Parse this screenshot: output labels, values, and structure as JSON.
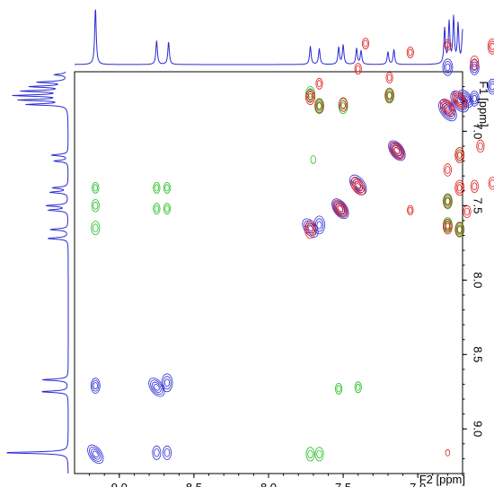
{
  "chart_data": {
    "type": "heatmap",
    "subtype": "2D NMR contour overlay",
    "title": "",
    "xlabel": "F2 [ppm]",
    "ylabel": "F1 [ppm]",
    "xlim": [
      9.3,
      6.7
    ],
    "ylim": [
      6.6,
      9.3
    ],
    "x_reversed": true,
    "y_direction": "increasing-downward",
    "axis_side": "right-bottom",
    "x_ticks": [
      "9.0",
      "8.5",
      "8.0",
      "7.5",
      "7.0"
    ],
    "y_ticks": [
      "7.0",
      "7.5",
      "8.0",
      "8.5",
      "9.0"
    ],
    "grid": false,
    "legend": "none",
    "colors": {
      "blue": "#2b2bd4",
      "green": "#1fbf1f",
      "red": "#e01c1c"
    },
    "proj_peaks": [
      {
        "ppm": 9.16,
        "h": 1.0
      },
      {
        "ppm": 8.75,
        "h": 0.42
      },
      {
        "ppm": 8.67,
        "h": 0.4
      },
      {
        "ppm": 7.72,
        "h": 0.32
      },
      {
        "ppm": 7.66,
        "h": 0.28
      },
      {
        "ppm": 7.53,
        "h": 0.3
      },
      {
        "ppm": 7.5,
        "h": 0.34
      },
      {
        "ppm": 7.41,
        "h": 0.28
      },
      {
        "ppm": 7.38,
        "h": 0.24
      },
      {
        "ppm": 7.2,
        "h": 0.22
      },
      {
        "ppm": 7.16,
        "h": 0.26
      },
      {
        "ppm": 6.82,
        "h": 0.62
      },
      {
        "ppm": 6.79,
        "h": 0.72
      },
      {
        "ppm": 6.76,
        "h": 0.8
      },
      {
        "ppm": 6.73,
        "h": 0.68
      },
      {
        "ppm": 6.7,
        "h": 0.56
      },
      {
        "ppm": 6.67,
        "h": 0.46
      },
      {
        "ppm": 6.62,
        "h": 0.2
      },
      {
        "ppm": 6.58,
        "h": 0.22
      },
      {
        "ppm": 6.5,
        "h": 0.18
      },
      {
        "ppm": 6.47,
        "h": 0.2
      }
    ],
    "series": [
      {
        "color": "blue",
        "points": [
          {
            "x": 9.16,
            "y": 9.17,
            "s": 1.3
          },
          {
            "x": 9.16,
            "y": 8.71,
            "s": 0.9
          },
          {
            "x": 8.75,
            "y": 8.72,
            "s": 1.3
          },
          {
            "x": 8.68,
            "y": 8.69,
            "s": 1.1
          },
          {
            "x": 8.75,
            "y": 9.16,
            "s": 0.8
          },
          {
            "x": 8.68,
            "y": 9.16,
            "s": 0.8
          },
          {
            "x": 7.72,
            "y": 7.65,
            "s": 1.3
          },
          {
            "x": 7.66,
            "y": 7.63,
            "s": 1.1
          },
          {
            "x": 7.52,
            "y": 7.52,
            "s": 1.4
          },
          {
            "x": 7.4,
            "y": 7.36,
            "s": 1.4
          },
          {
            "x": 7.14,
            "y": 7.13,
            "s": 1.4
          },
          {
            "x": 6.8,
            "y": 6.86,
            "s": 1.5
          },
          {
            "x": 6.72,
            "y": 6.8,
            "s": 1.5
          },
          {
            "x": 6.68,
            "y": 6.78,
            "s": 1.2
          },
          {
            "x": 6.8,
            "y": 6.57,
            "s": 1.0
          },
          {
            "x": 6.62,
            "y": 6.57,
            "s": 0.9
          },
          {
            "x": 6.5,
            "y": 6.7,
            "s": 0.9
          },
          {
            "x": 6.62,
            "y": 6.78,
            "s": 0.9
          }
        ]
      },
      {
        "color": "green",
        "points": [
          {
            "x": 9.16,
            "y": 7.38,
            "s": 0.6
          },
          {
            "x": 9.16,
            "y": 7.5,
            "s": 0.7
          },
          {
            "x": 9.16,
            "y": 7.65,
            "s": 0.8
          },
          {
            "x": 8.75,
            "y": 7.38,
            "s": 0.6
          },
          {
            "x": 8.68,
            "y": 7.38,
            "s": 0.6
          },
          {
            "x": 8.75,
            "y": 7.52,
            "s": 0.6
          },
          {
            "x": 8.68,
            "y": 7.52,
            "s": 0.6
          },
          {
            "x": 7.72,
            "y": 9.17,
            "s": 0.8
          },
          {
            "x": 7.66,
            "y": 9.17,
            "s": 0.8
          },
          {
            "x": 7.53,
            "y": 8.73,
            "s": 0.6
          },
          {
            "x": 7.4,
            "y": 8.72,
            "s": 0.6
          },
          {
            "x": 7.72,
            "y": 6.75,
            "s": 0.9
          },
          {
            "x": 7.66,
            "y": 6.83,
            "s": 0.9
          },
          {
            "x": 7.5,
            "y": 6.83,
            "s": 0.9
          },
          {
            "x": 7.19,
            "y": 6.76,
            "s": 0.9
          },
          {
            "x": 6.8,
            "y": 7.47,
            "s": 0.9
          },
          {
            "x": 6.8,
            "y": 7.63,
            "s": 0.9
          },
          {
            "x": 6.72,
            "y": 7.66,
            "s": 0.9
          },
          {
            "x": 6.72,
            "y": 7.16,
            "s": 0.9
          },
          {
            "x": 7.7,
            "y": 7.19,
            "s": 0.4
          }
        ]
      },
      {
        "color": "red",
        "points": [
          {
            "x": 7.72,
            "y": 7.66,
            "s": 1.1
          },
          {
            "x": 7.52,
            "y": 7.52,
            "s": 1.2
          },
          {
            "x": 7.4,
            "y": 7.37,
            "s": 1.2
          },
          {
            "x": 7.14,
            "y": 7.13,
            "s": 1.2
          },
          {
            "x": 6.8,
            "y": 6.84,
            "s": 1.2
          },
          {
            "x": 6.72,
            "y": 6.79,
            "s": 1.2
          },
          {
            "x": 7.35,
            "y": 6.41,
            "s": 0.6
          },
          {
            "x": 7.05,
            "y": 6.47,
            "s": 0.6
          },
          {
            "x": 7.4,
            "y": 6.58,
            "s": 0.6
          },
          {
            "x": 7.19,
            "y": 6.64,
            "s": 0.6
          },
          {
            "x": 7.66,
            "y": 6.68,
            "s": 0.6
          },
          {
            "x": 7.72,
            "y": 6.77,
            "s": 0.9
          },
          {
            "x": 7.66,
            "y": 6.83,
            "s": 0.8
          },
          {
            "x": 7.5,
            "y": 6.82,
            "s": 0.8
          },
          {
            "x": 7.19,
            "y": 6.76,
            "s": 0.8
          },
          {
            "x": 6.8,
            "y": 6.42,
            "s": 0.6
          },
          {
            "x": 6.62,
            "y": 6.54,
            "s": 0.8
          },
          {
            "x": 6.5,
            "y": 6.43,
            "s": 0.9
          },
          {
            "x": 6.72,
            "y": 7.16,
            "s": 0.9
          },
          {
            "x": 6.8,
            "y": 7.26,
            "s": 0.7
          },
          {
            "x": 6.58,
            "y": 7.1,
            "s": 0.7
          },
          {
            "x": 6.62,
            "y": 7.37,
            "s": 0.7
          },
          {
            "x": 6.5,
            "y": 7.35,
            "s": 0.7
          },
          {
            "x": 6.72,
            "y": 7.38,
            "s": 0.9
          },
          {
            "x": 6.8,
            "y": 7.47,
            "s": 0.8
          },
          {
            "x": 6.8,
            "y": 7.64,
            "s": 0.9
          },
          {
            "x": 6.67,
            "y": 7.54,
            "s": 0.7
          },
          {
            "x": 6.72,
            "y": 7.66,
            "s": 0.8
          },
          {
            "x": 7.05,
            "y": 7.53,
            "s": 0.5
          },
          {
            "x": 6.8,
            "y": 9.16,
            "s": 0.3
          }
        ]
      }
    ]
  }
}
